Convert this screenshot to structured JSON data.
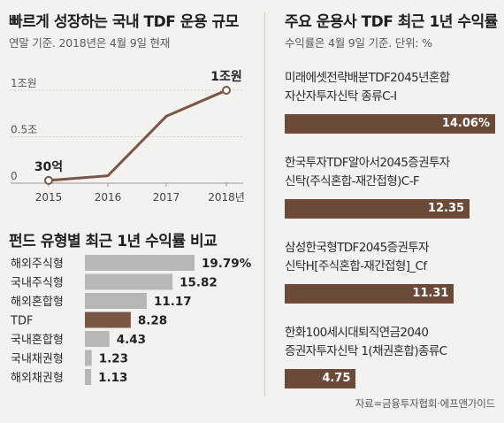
{
  "left": {
    "growth": {
      "title": "빠르게 성장하는 국내 TDF 운용 규모",
      "subtitle": "연말 기준. 2018년은 4월 9일 현재"
    },
    "types": {
      "title": "펀드 유형별 최근 1년 수익률 비교"
    }
  },
  "right": {
    "title": "주요 운용사 TDF 최근 1년 수익률",
    "subtitle": "수익률은 4월 9일 기준. 단위: %",
    "source": "자료=금융투자협회·에프앤가이드"
  },
  "chart_data": [
    {
      "type": "line",
      "x": [
        "2015",
        "2016",
        "2017",
        "2018년"
      ],
      "values": [
        0.03,
        0.08,
        0.72,
        1.0
      ],
      "ylim": [
        0,
        1.0
      ],
      "yticks": [
        {
          "value": 0,
          "label": "0"
        },
        {
          "value": 0.5,
          "label": "0.5조"
        },
        {
          "value": 1.0,
          "label": "1조원"
        }
      ],
      "annotations": [
        {
          "index": 0,
          "label": "30억"
        },
        {
          "index": 3,
          "label": "1조원"
        }
      ],
      "colors": {
        "line": "#7a5646",
        "marker_fill": "#ffffff"
      }
    },
    {
      "type": "bar",
      "categories": [
        "해외주식형",
        "국내주식형",
        "해외혼합형",
        "TDF",
        "국내혼합형",
        "국내채권형",
        "해외채권형"
      ],
      "values": [
        19.79,
        15.82,
        11.17,
        8.28,
        4.43,
        1.23,
        1.13
      ],
      "value_labels": [
        "19.79%",
        "15.82",
        "11.17",
        "8.28",
        "4.43",
        "1.23",
        "1.13"
      ],
      "highlight": "TDF",
      "colors": {
        "bar": "#b9b7b4",
        "highlight": "#7a5646"
      }
    },
    {
      "type": "bar",
      "categories": [
        [
          "미래에셋전략배분TDF2045년혼합",
          "자산자투자신탁 종류C-I"
        ],
        [
          "한국투자TDF알아서2045증권투자",
          "신탁(주식혼합-재간접형)C-F"
        ],
        [
          "삼성한국형TDF2045증권투자",
          "신탁H[주식혼합-재간접형]_Cf"
        ],
        [
          "한화100세시대퇴직연금2040",
          "증권자투자신탁 1(채권혼합)종류C"
        ]
      ],
      "values": [
        14.06,
        12.35,
        11.31,
        4.75
      ],
      "value_labels": [
        "14.06%",
        "12.35",
        "11.31",
        "4.75"
      ],
      "colors": {
        "bar": "#6b4a3a"
      }
    }
  ]
}
